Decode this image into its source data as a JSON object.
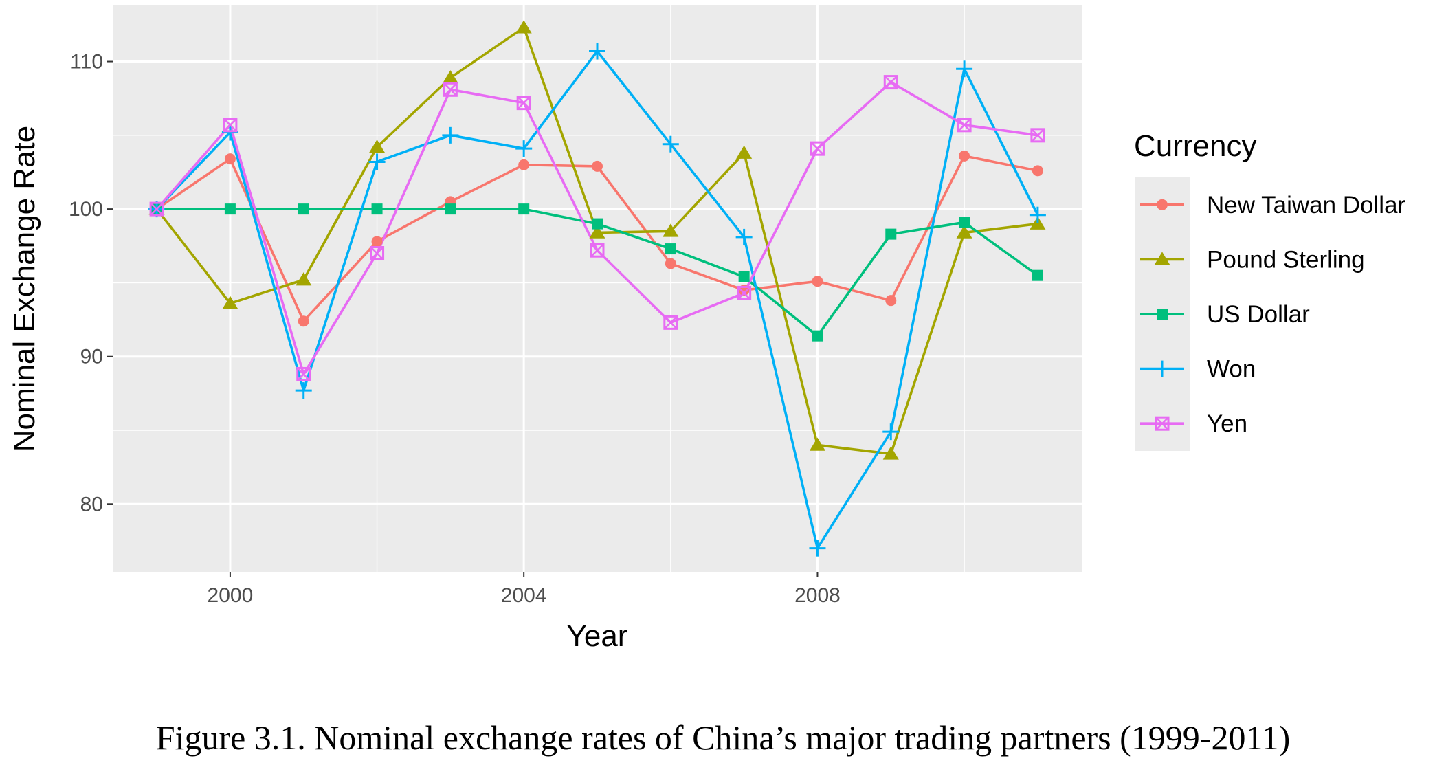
{
  "chart_data": {
    "type": "line",
    "title": "",
    "xlabel": "Year",
    "ylabel": "Nominal Exchange Rate",
    "x": [
      1999,
      2000,
      2001,
      2002,
      2003,
      2004,
      2005,
      2006,
      2007,
      2008,
      2009,
      2010,
      2011
    ],
    "xlim": [
      1998.4,
      2011.6
    ],
    "ylim": [
      75.4,
      113.8
    ],
    "x_ticks": [
      2000,
      2004,
      2008
    ],
    "y_ticks": [
      80,
      90,
      100,
      110
    ],
    "grid": true,
    "panel_background": "#ebebeb",
    "legend": {
      "title": "Currency",
      "placement": "right"
    },
    "series": [
      {
        "name": "New Taiwan Dollar",
        "color": "#f8766d",
        "marker": "circle",
        "values": [
          100.0,
          103.4,
          92.4,
          97.8,
          100.5,
          103.0,
          102.9,
          96.3,
          94.5,
          95.1,
          93.8,
          103.6,
          102.6
        ]
      },
      {
        "name": "Pound Sterling",
        "color": "#a3a500",
        "marker": "triangle",
        "values": [
          100.0,
          93.6,
          95.2,
          104.2,
          108.9,
          112.3,
          98.4,
          98.5,
          103.8,
          84.0,
          83.4,
          98.4,
          99.0
        ]
      },
      {
        "name": "US Dollar",
        "color": "#00bf7d",
        "marker": "square",
        "values": [
          100.0,
          100.0,
          100.0,
          100.0,
          100.0,
          100.0,
          99.0,
          97.3,
          95.4,
          91.4,
          98.3,
          99.1,
          95.5
        ]
      },
      {
        "name": "Won",
        "color": "#00b0f6",
        "marker": "plus",
        "values": [
          100.0,
          105.2,
          87.7,
          103.2,
          105.0,
          104.1,
          110.7,
          104.4,
          98.1,
          77.0,
          84.9,
          109.5,
          99.6
        ]
      },
      {
        "name": "Yen",
        "color": "#e76bf3",
        "marker": "square-cross",
        "values": [
          100.0,
          105.7,
          88.8,
          97.0,
          108.1,
          107.2,
          97.2,
          92.3,
          94.3,
          104.1,
          108.6,
          105.7,
          105.0
        ]
      }
    ]
  },
  "caption": "Figure 3.1. Nominal exchange rates of China’s major trading partners (1999-2011)"
}
